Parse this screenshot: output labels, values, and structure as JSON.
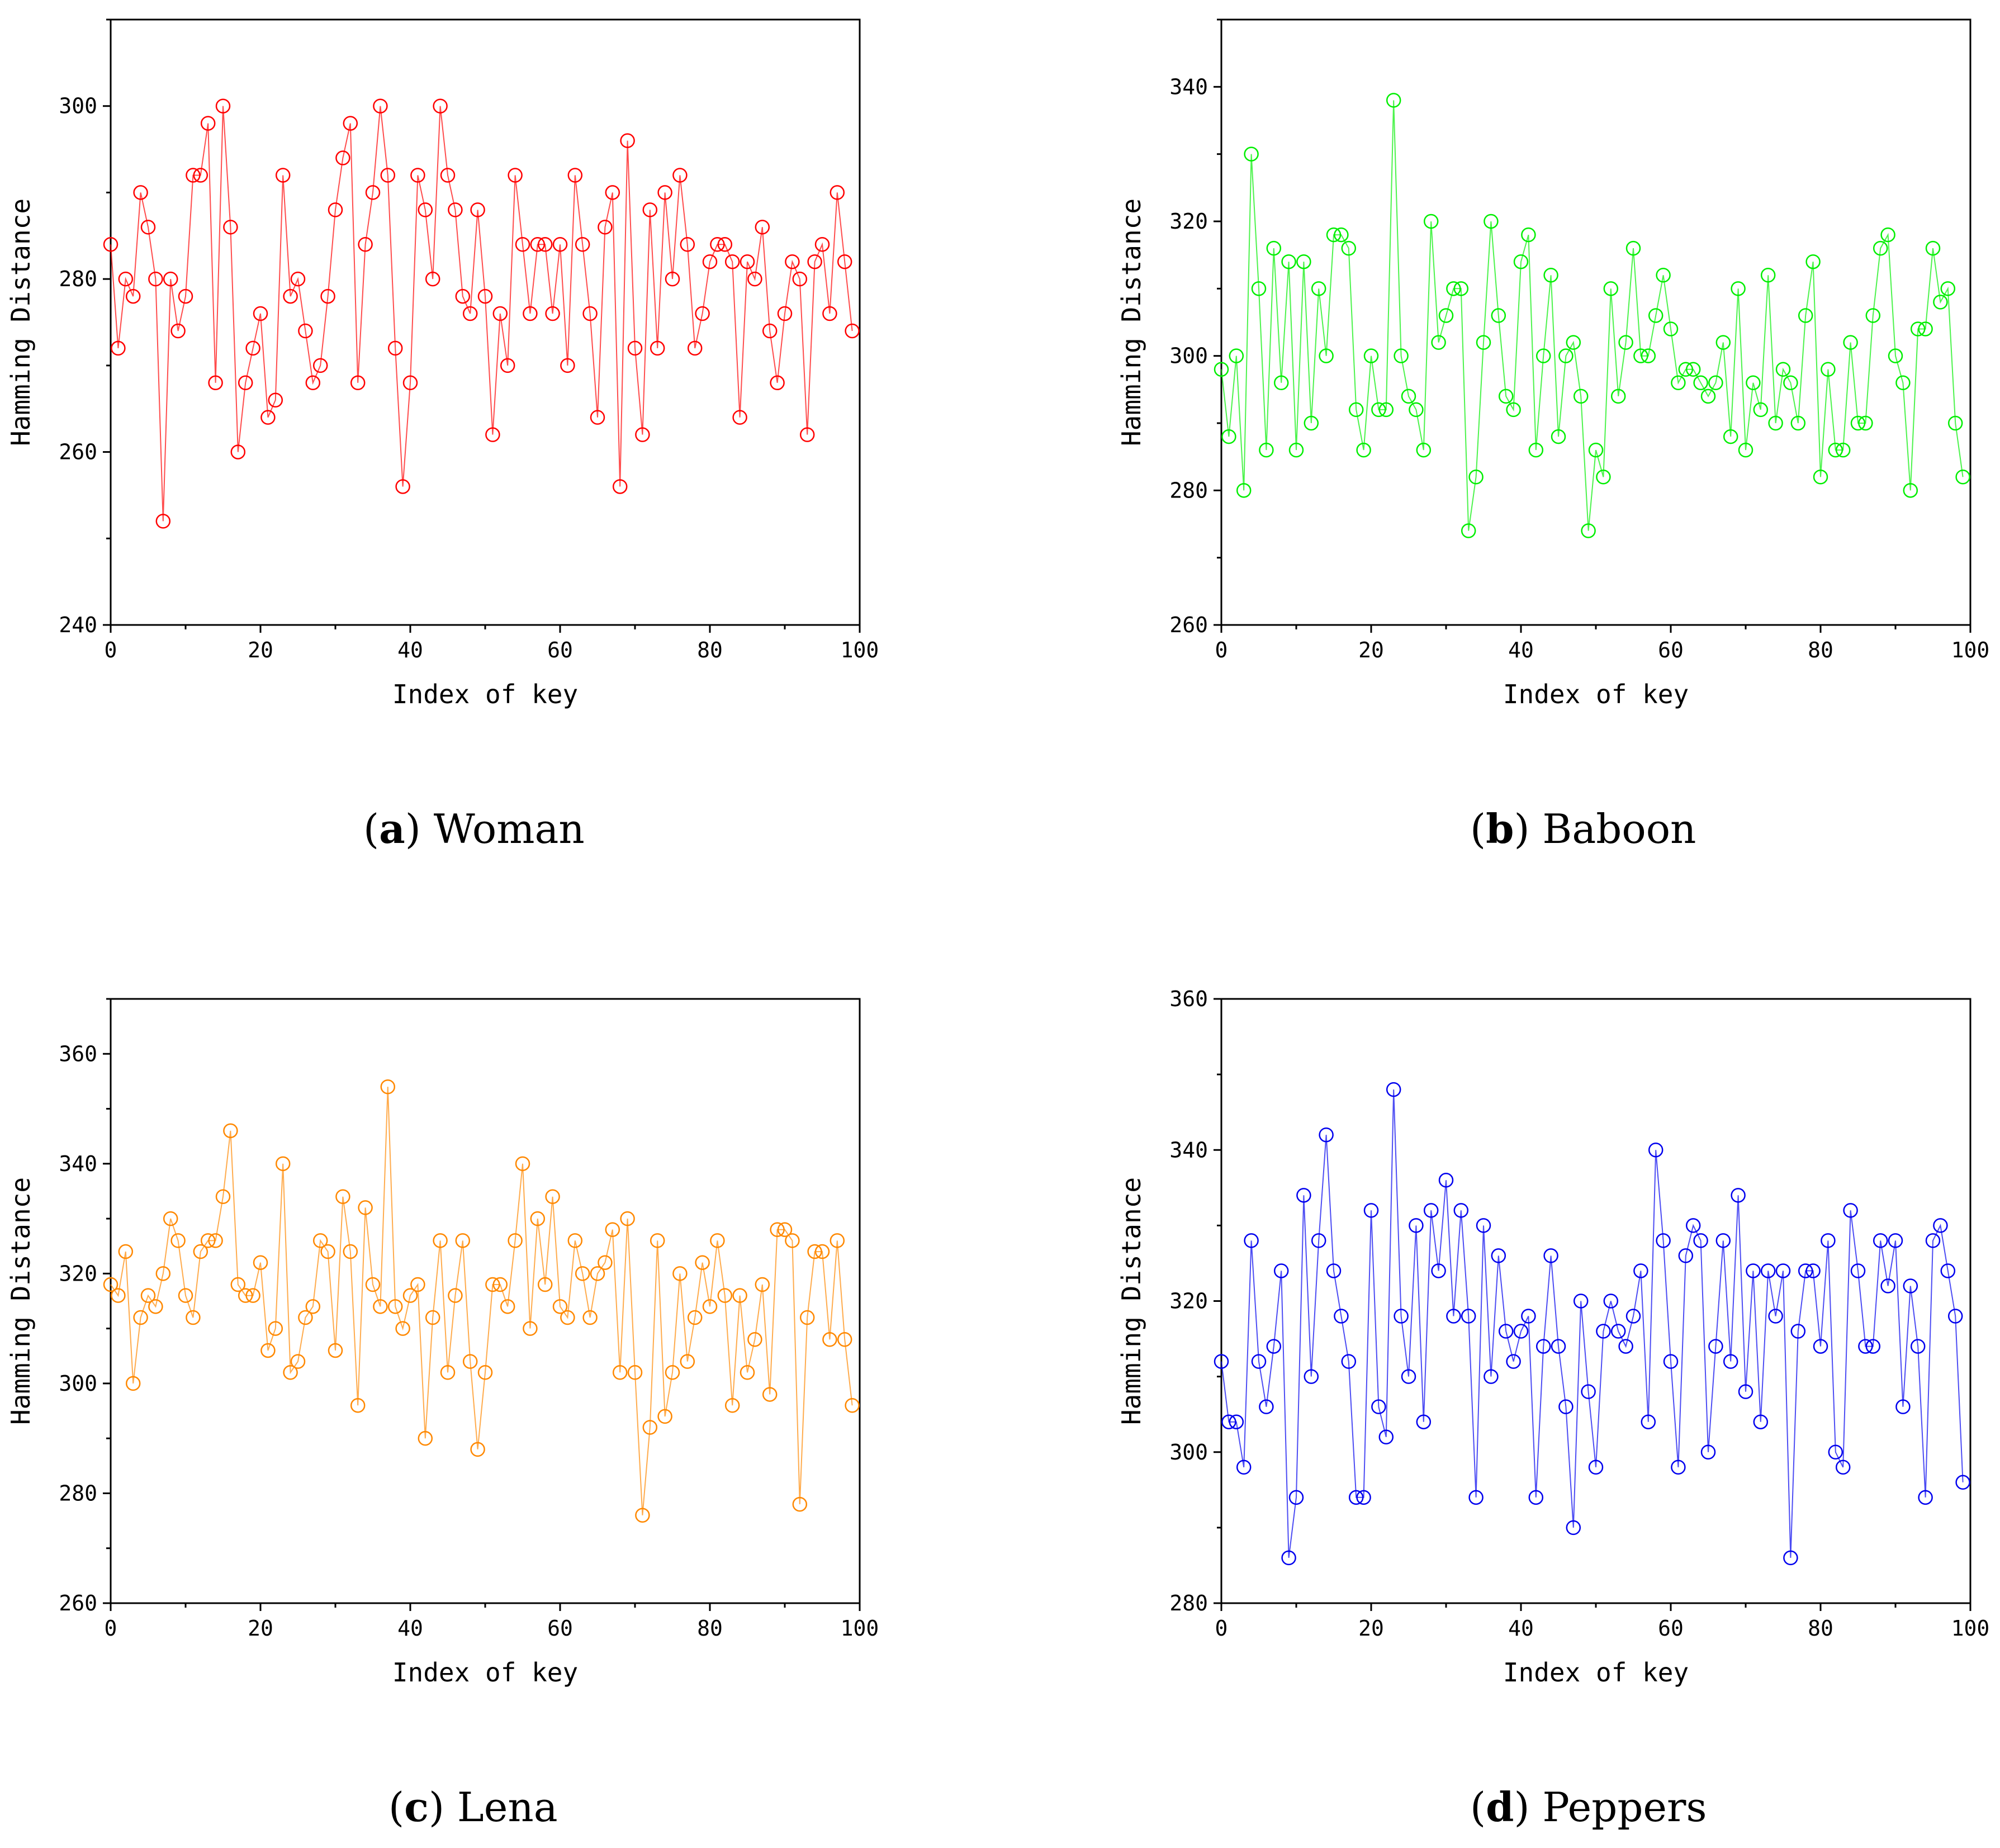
{
  "chart_data": [
    {
      "type": "line",
      "caption_letter": "a",
      "caption_text": "Woman",
      "xlabel": "Index of key",
      "ylabel": "Hamming Distance",
      "xlim": [
        0,
        100
      ],
      "ylim": [
        240,
        310
      ],
      "xticks": [
        0,
        20,
        40,
        60,
        80,
        100
      ],
      "yticks": [
        240,
        260,
        280,
        300
      ],
      "color": "#ff0000",
      "series": [
        {
          "x": [
            0,
            1,
            2,
            3,
            4,
            5,
            6,
            7,
            8,
            9,
            10,
            11,
            12,
            13,
            14,
            15,
            16,
            17,
            18,
            19,
            20,
            21,
            22,
            23,
            24,
            25,
            26,
            27,
            28,
            29,
            30,
            31,
            32,
            33,
            34,
            35,
            36,
            37,
            38,
            39,
            40,
            41,
            42,
            43,
            44,
            45,
            46,
            47,
            48,
            49,
            50,
            51,
            52,
            53,
            54,
            55,
            56,
            57,
            58,
            59,
            60,
            61,
            62,
            63,
            64,
            65,
            66,
            67,
            68,
            69,
            70,
            71,
            72,
            73,
            74,
            75,
            76,
            77,
            78,
            79,
            80,
            81,
            82,
            83,
            84,
            85,
            86,
            87,
            88,
            89,
            90,
            91,
            92,
            93,
            94,
            95,
            96,
            97,
            98,
            99
          ],
          "y": [
            284,
            272,
            280,
            278,
            290,
            286,
            280,
            252,
            280,
            274,
            278,
            292,
            292,
            298,
            268,
            300,
            286,
            260,
            268,
            272,
            276,
            264,
            266,
            292,
            278,
            280,
            274,
            268,
            270,
            278,
            288,
            294,
            298,
            268,
            284,
            290,
            300,
            292,
            272,
            256,
            268,
            292,
            288,
            280,
            300,
            292,
            288,
            278,
            276,
            288,
            278,
            262,
            276,
            270,
            292,
            284,
            276,
            284,
            284,
            276,
            284,
            270,
            292,
            284,
            276,
            264,
            286,
            290,
            256,
            296,
            272,
            262,
            288,
            272,
            290,
            280,
            292,
            284,
            272,
            276,
            282,
            284,
            284,
            282,
            264,
            282,
            280,
            286,
            274,
            268,
            276,
            282,
            280,
            262,
            282,
            284,
            276,
            290,
            282,
            274
          ]
        }
      ]
    },
    {
      "type": "line",
      "caption_letter": "b",
      "caption_text": "Baboon",
      "xlabel": "Index of key",
      "ylabel": "Hamming Distance",
      "xlim": [
        0,
        100
      ],
      "ylim": [
        260,
        350
      ],
      "xticks": [
        0,
        20,
        40,
        60,
        80,
        100
      ],
      "yticks": [
        260,
        280,
        300,
        320,
        340
      ],
      "color": "#00ee00",
      "series": [
        {
          "x": [
            0,
            1,
            2,
            3,
            4,
            5,
            6,
            7,
            8,
            9,
            10,
            11,
            12,
            13,
            14,
            15,
            16,
            17,
            18,
            19,
            20,
            21,
            22,
            23,
            24,
            25,
            26,
            27,
            28,
            29,
            30,
            31,
            32,
            33,
            34,
            35,
            36,
            37,
            38,
            39,
            40,
            41,
            42,
            43,
            44,
            45,
            46,
            47,
            48,
            49,
            50,
            51,
            52,
            53,
            54,
            55,
            56,
            57,
            58,
            59,
            60,
            61,
            62,
            63,
            64,
            65,
            66,
            67,
            68,
            69,
            70,
            71,
            72,
            73,
            74,
            75,
            76,
            77,
            78,
            79,
            80,
            81,
            82,
            83,
            84,
            85,
            86,
            87,
            88,
            89,
            90,
            91,
            92,
            93,
            94,
            95,
            96,
            97,
            98,
            99
          ],
          "y": [
            298,
            288,
            300,
            280,
            330,
            310,
            286,
            316,
            296,
            314,
            286,
            314,
            290,
            310,
            300,
            318,
            318,
            316,
            292,
            286,
            300,
            292,
            292,
            338,
            300,
            294,
            292,
            286,
            320,
            302,
            306,
            310,
            310,
            274,
            282,
            302,
            320,
            306,
            294,
            292,
            314,
            318,
            286,
            300,
            312,
            288,
            300,
            302,
            294,
            274,
            286,
            282,
            310,
            294,
            302,
            316,
            300,
            300,
            306,
            312,
            304,
            296,
            298,
            298,
            296,
            294,
            296,
            302,
            288,
            310,
            286,
            296,
            292,
            312,
            290,
            298,
            296,
            290,
            306,
            314,
            282,
            298,
            286,
            286,
            302,
            290,
            290,
            306,
            316,
            318,
            300,
            296,
            280,
            304,
            304,
            316,
            308,
            310,
            290,
            282
          ]
        }
      ]
    },
    {
      "type": "line",
      "caption_letter": "c",
      "caption_text": "Lena",
      "xlabel": "Index of key",
      "ylabel": "Hamming Distance",
      "xlim": [
        0,
        100
      ],
      "ylim": [
        260,
        370
      ],
      "xticks": [
        0,
        20,
        40,
        60,
        80,
        100
      ],
      "yticks": [
        260,
        280,
        300,
        320,
        340,
        360
      ],
      "color": "#ff8800",
      "series": [
        {
          "x": [
            0,
            1,
            2,
            3,
            4,
            5,
            6,
            7,
            8,
            9,
            10,
            11,
            12,
            13,
            14,
            15,
            16,
            17,
            18,
            19,
            20,
            21,
            22,
            23,
            24,
            25,
            26,
            27,
            28,
            29,
            30,
            31,
            32,
            33,
            34,
            35,
            36,
            37,
            38,
            39,
            40,
            41,
            42,
            43,
            44,
            45,
            46,
            47,
            48,
            49,
            50,
            51,
            52,
            53,
            54,
            55,
            56,
            57,
            58,
            59,
            60,
            61,
            62,
            63,
            64,
            65,
            66,
            67,
            68,
            69,
            70,
            71,
            72,
            73,
            74,
            75,
            76,
            77,
            78,
            79,
            80,
            81,
            82,
            83,
            84,
            85,
            86,
            87,
            88,
            89,
            90,
            91,
            92,
            93,
            94,
            95,
            96,
            97,
            98,
            99
          ],
          "y": [
            318,
            316,
            324,
            300,
            312,
            316,
            314,
            320,
            330,
            326,
            316,
            312,
            324,
            326,
            326,
            334,
            346,
            318,
            316,
            316,
            322,
            306,
            310,
            340,
            302,
            304,
            312,
            314,
            326,
            324,
            306,
            334,
            324,
            296,
            332,
            318,
            314,
            354,
            314,
            310,
            316,
            318,
            290,
            312,
            326,
            302,
            316,
            326,
            304,
            288,
            302,
            318,
            318,
            314,
            326,
            340,
            310,
            330,
            318,
            334,
            314,
            312,
            326,
            320,
            312,
            320,
            322,
            328,
            302,
            330,
            302,
            276,
            292,
            326,
            294,
            302,
            320,
            304,
            312,
            322,
            314,
            326,
            316,
            296,
            316,
            302,
            308,
            318,
            298,
            328,
            328,
            326,
            278,
            312,
            324,
            324,
            308,
            326,
            308,
            296
          ]
        }
      ]
    },
    {
      "type": "line",
      "caption_letter": "d",
      "caption_text": "Peppers",
      "xlabel": "Index of key",
      "ylabel": "Hamming Distance",
      "xlim": [
        0,
        100
      ],
      "ylim": [
        280,
        360
      ],
      "xticks": [
        0,
        20,
        40,
        60,
        80,
        100
      ],
      "yticks": [
        280,
        300,
        320,
        340,
        360
      ],
      "color": "#0000ee",
      "series": [
        {
          "x": [
            0,
            1,
            2,
            3,
            4,
            5,
            6,
            7,
            8,
            9,
            10,
            11,
            12,
            13,
            14,
            15,
            16,
            17,
            18,
            19,
            20,
            21,
            22,
            23,
            24,
            25,
            26,
            27,
            28,
            29,
            30,
            31,
            32,
            33,
            34,
            35,
            36,
            37,
            38,
            39,
            40,
            41,
            42,
            43,
            44,
            45,
            46,
            47,
            48,
            49,
            50,
            51,
            52,
            53,
            54,
            55,
            56,
            57,
            58,
            59,
            60,
            61,
            62,
            63,
            64,
            65,
            66,
            67,
            68,
            69,
            70,
            71,
            72,
            73,
            74,
            75,
            76,
            77,
            78,
            79,
            80,
            81,
            82,
            83,
            84,
            85,
            86,
            87,
            88,
            89,
            90,
            91,
            92,
            93,
            94,
            95,
            96,
            97,
            98,
            99
          ],
          "y": [
            312,
            304,
            304,
            298,
            328,
            312,
            306,
            314,
            324,
            286,
            294,
            334,
            310,
            328,
            342,
            324,
            318,
            312,
            294,
            294,
            332,
            306,
            302,
            348,
            318,
            310,
            330,
            304,
            332,
            324,
            336,
            318,
            332,
            318,
            294,
            330,
            310,
            326,
            316,
            312,
            316,
            318,
            294,
            314,
            326,
            314,
            306,
            290,
            320,
            308,
            298,
            316,
            320,
            316,
            314,
            318,
            324,
            304,
            340,
            328,
            312,
            298,
            326,
            330,
            328,
            300,
            314,
            328,
            312,
            334,
            308,
            324,
            304,
            324,
            318,
            324,
            286,
            316,
            324,
            324,
            314,
            328,
            300,
            298,
            332,
            324,
            314,
            314,
            328,
            322,
            328,
            306,
            322,
            314,
            294,
            328,
            330,
            324,
            318,
            296
          ]
        }
      ]
    }
  ]
}
